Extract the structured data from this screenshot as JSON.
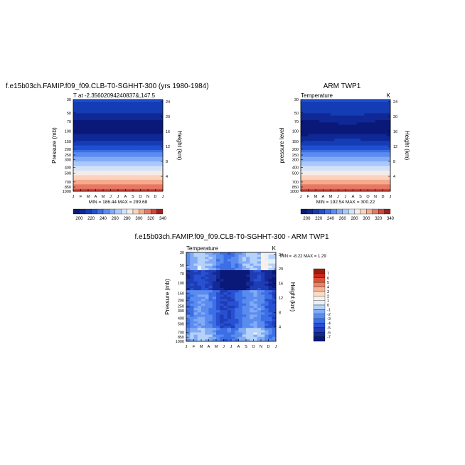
{
  "panels": [
    {
      "id": "model",
      "title": "f.e15b03ch.FAMIP.f09_f09.CLB-T0-SGHHT-300 (yrs 1980-1984)",
      "subtitle_left": "T at -2.35602094240837&,147.5",
      "subtitle_right": "",
      "ylabel_left": "Pressure (mb)",
      "ylabel_right": "Height (km)",
      "minmax_text": "MIN = 186.44  MAX = 299.68"
    },
    {
      "id": "obs",
      "title": "ARM TWP1",
      "subtitle_left": "Temperature",
      "subtitle_right": "K",
      "ylabel_left": "pressure level",
      "ylabel_right": "Height (km)",
      "minmax_text": "MIN = 192.54  MAX = 300.22"
    },
    {
      "id": "diff",
      "title": "f.e15b03ch.FAMIP.f09_f09.CLB-T0-SGHHT-300 - ARM TWP1",
      "subtitle_left": "Temperature",
      "subtitle_right": "K",
      "ylabel_left": "Pressure (mb)",
      "ylabel_right": "Height (km)",
      "minmax_text": "MIN =   -8.22  MAX =    1.29"
    }
  ],
  "chart_data": [
    {
      "type": "heatmap",
      "title": "f.e15b03ch.FAMIP.f09_f09.CLB-T0-SGHHT-300 (yrs 1980-1984)",
      "subtitle": "T at -2.35602094240837&,147.5",
      "x_tick_labels": [
        "J",
        "F",
        "M",
        "A",
        "M",
        "J",
        "J",
        "A",
        "S",
        "O",
        "N",
        "D",
        "J"
      ],
      "y_axis": {
        "label": "Pressure (mb)",
        "ticks": [
          30,
          50,
          70,
          100,
          150,
          200,
          250,
          300,
          400,
          500,
          700,
          850,
          1000
        ],
        "reversed": true,
        "scale": "log"
      },
      "y2_axis": {
        "label": "Height (km)",
        "ticks": [
          4,
          8,
          12,
          16,
          20,
          24
        ]
      },
      "colorbar": {
        "levels": [
          200,
          220,
          240,
          260,
          280,
          300,
          320,
          340
        ]
      },
      "min": 186.44,
      "max": 299.68
    },
    {
      "type": "heatmap",
      "title": "ARM TWP1",
      "subtitle": "Temperature",
      "units": "K",
      "x_tick_labels": [
        "J",
        "F",
        "M",
        "A",
        "M",
        "J",
        "J",
        "A",
        "S",
        "O",
        "N",
        "D",
        "J"
      ],
      "y_axis": {
        "label": "pressure level",
        "ticks": [
          30,
          50,
          70,
          100,
          150,
          200,
          250,
          300,
          400,
          500,
          700,
          850,
          1000
        ],
        "reversed": true,
        "scale": "log"
      },
      "y2_axis": {
        "label": "Height (km)",
        "ticks": [
          4,
          8,
          12,
          16,
          20,
          24
        ]
      },
      "colorbar": {
        "levels": [
          200,
          220,
          240,
          260,
          280,
          300,
          320,
          340
        ]
      },
      "min": 192.54,
      "max": 300.22
    },
    {
      "type": "heatmap",
      "title": "f.e15b03ch.FAMIP.f09_f09.CLB-T0-SGHHT-300 - ARM TWP1",
      "subtitle": "Temperature",
      "units": "K",
      "x_tick_labels": [
        "J",
        "F",
        "M",
        "A",
        "M",
        "J",
        "J",
        "A",
        "S",
        "O",
        "N",
        "D",
        "J"
      ],
      "y_axis": {
        "label": "Pressure (mb)",
        "ticks": [
          30,
          50,
          70,
          100,
          150,
          200,
          250,
          300,
          400,
          500,
          700,
          850,
          1000
        ],
        "reversed": true,
        "scale": "log"
      },
      "y2_axis": {
        "label": "Height (km)",
        "ticks": [
          4,
          8,
          12,
          16,
          20,
          24
        ]
      },
      "colorbar": {
        "levels": [
          7,
          6,
          5,
          4,
          3,
          2,
          1,
          0,
          -1,
          -2,
          -3,
          -4,
          -5,
          -6,
          -7
        ]
      },
      "min": -8.22,
      "max": 1.29
    }
  ],
  "colors": {
    "abs_palette": [
      "#0a1878",
      "#0f2896",
      "#143cb4",
      "#1e50d2",
      "#3c6ee6",
      "#5a8cf0",
      "#82aaf5",
      "#aac8fa",
      "#d2e1fa",
      "#f5ebe6",
      "#fad2be",
      "#f5aa8c",
      "#e67864",
      "#d2463c",
      "#a01e1e"
    ],
    "diff_palette": [
      "#0a1878",
      "#142896",
      "#1e3cb4",
      "#2850d2",
      "#3c6ee6",
      "#5a8cf0",
      "#82aaf5",
      "#b4d2fa",
      "#e6f0fa",
      "#faf0e6",
      "#fadcc8",
      "#f5b496",
      "#eb8264",
      "#dc503c",
      "#c82814",
      "#961e0f"
    ]
  }
}
